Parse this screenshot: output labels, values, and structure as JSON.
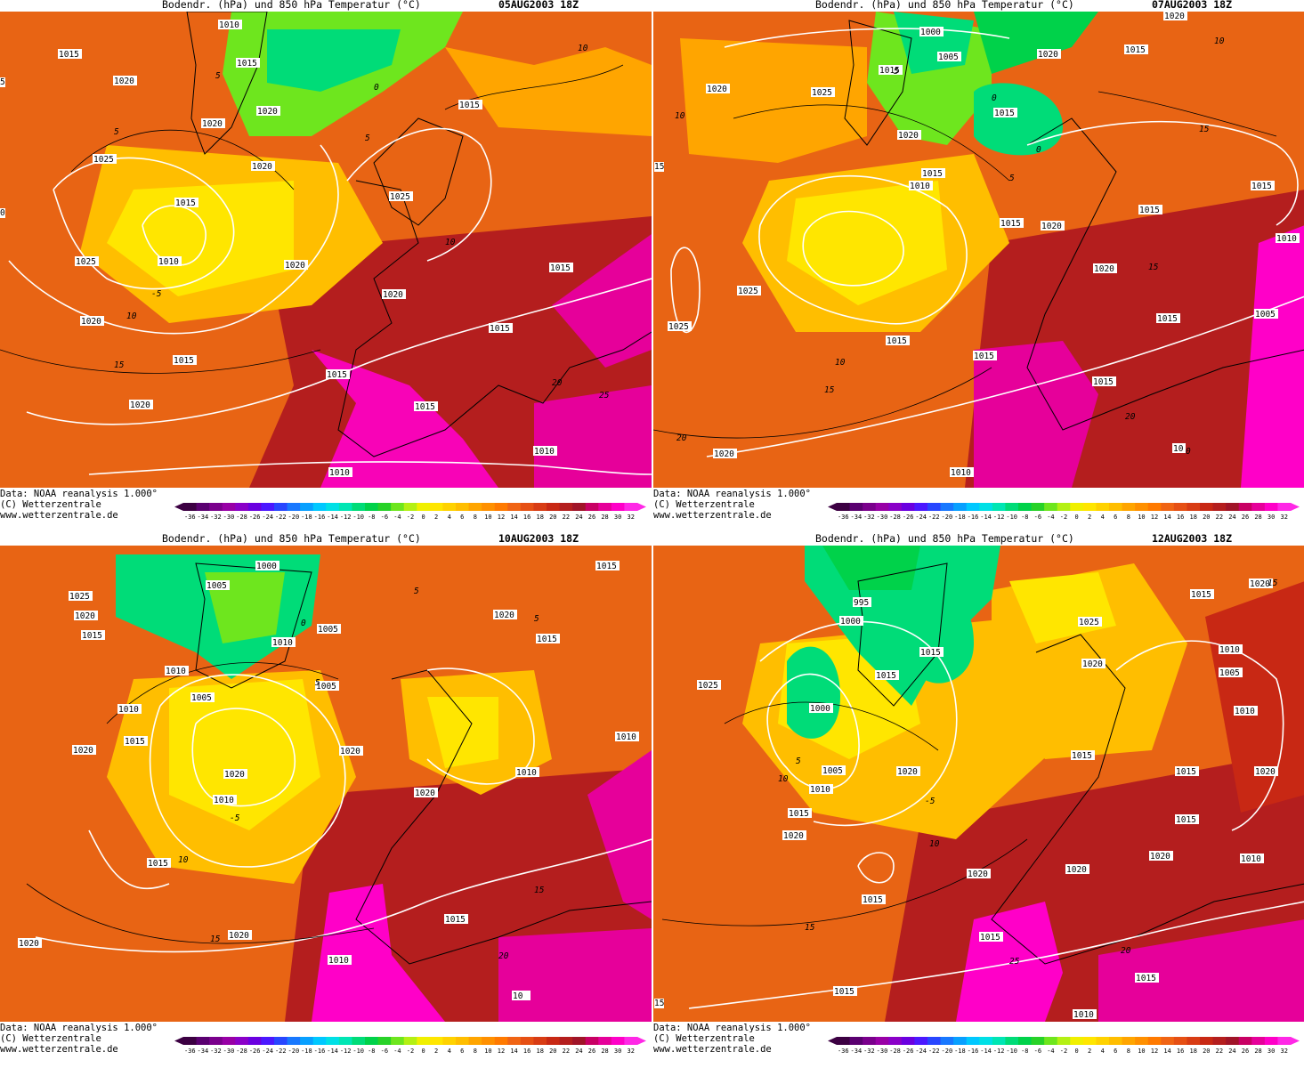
{
  "colors": {
    "bg": "#ffffff",
    "isobar": "#ffffff",
    "isotherm": "#000000",
    "land_outline": "#000000"
  },
  "scale": {
    "ticks": [
      "-36",
      "-34",
      "-32",
      "-30",
      "-28",
      "-26",
      "-24",
      "-22",
      "-20",
      "-18",
      "-16",
      "-14",
      "-12",
      "-10",
      "-8",
      "-6",
      "-4",
      "-2",
      "0",
      "2",
      "4",
      "6",
      "8",
      "10",
      "12",
      "14",
      "16",
      "18",
      "20",
      "22",
      "24",
      "26",
      "28",
      "30",
      "32"
    ],
    "colors": [
      "#3c0042",
      "#5a0070",
      "#7a008c",
      "#9800a6",
      "#8a00c8",
      "#6a00e0",
      "#4b18ff",
      "#2846ff",
      "#1878ff",
      "#08a0ff",
      "#00c8ff",
      "#00e0e6",
      "#00e6b4",
      "#00dc78",
      "#00d24a",
      "#28d228",
      "#6ee61e",
      "#b4f014",
      "#f0f000",
      "#ffe600",
      "#ffd200",
      "#ffbe00",
      "#ffa500",
      "#ff9000",
      "#ff7a00",
      "#f06414",
      "#e65014",
      "#d83c14",
      "#c82814",
      "#b41e1e",
      "#a01428",
      "#c80064",
      "#e6009a",
      "#ff00c8",
      "#ff28e6"
    ]
  },
  "panels": [
    {
      "title": "Bodendr. (hPa) und 850 hPa Temperatur (°C)",
      "date": "05AUG2003 18Z",
      "credit": [
        "Data: NOAA reanalysis 1.000°",
        "(C) Wetterzentrale",
        "www.wetterzentrale.de"
      ],
      "isobar_labels": [
        "1010",
        "1015",
        "1020",
        "1015",
        "1020",
        "1020",
        "1025",
        "1015",
        "1010",
        "1025",
        "1020",
        "1015",
        "1025",
        "1020",
        "1015",
        "1020",
        "1015",
        "1015",
        "1020",
        "1015",
        "1010",
        "1020",
        "1010",
        "1015"
      ],
      "isotherm_labels": [
        "5",
        "0",
        "5",
        "10",
        "-5",
        "5",
        "10",
        "15",
        "10",
        "25",
        "20"
      ],
      "left_edge_labels": [
        "5",
        "0"
      ]
    },
    {
      "title": "Bodendr. (hPa) und 850 hPa Temperatur (°C)",
      "date": "07AUG2003 18Z",
      "credit": [
        "Data: NOAA reanalysis 1.000°",
        "(C) Wetterzentrale",
        "www.wetterzentrale.de"
      ],
      "isobar_labels": [
        "1020",
        "1000",
        "1005",
        "1020",
        "1015",
        "1015",
        "1025",
        "1015",
        "1020",
        "1020",
        "1015",
        "1010",
        "1015",
        "1015",
        "1020",
        "1020",
        "1010",
        "1025",
        "1015",
        "1025",
        "1015",
        "1015",
        "1005",
        "1015",
        "1015",
        "1020",
        "1010",
        "10"
      ],
      "isotherm_labels": [
        "0",
        "10",
        "5",
        "15",
        "0",
        "10",
        "15",
        "5",
        "10",
        "15",
        "20",
        "20",
        "0"
      ],
      "left_edge_labels": [
        "15"
      ]
    },
    {
      "title": "Bodendr. (hPa) und 850 hPa Temperatur (°C)",
      "date": "10AUG2003 18Z",
      "credit": [
        "Data: NOAA reanalysis 1.000°",
        "(C) Wetterzentrale",
        "www.wetterzentrale.de"
      ],
      "isobar_labels": [
        "1000",
        "1015",
        "1025",
        "1020",
        "1005",
        "1015",
        "1020",
        "1010",
        "1005",
        "1010",
        "1015",
        "1010",
        "1005",
        "1020",
        "1010",
        "1020",
        "1010",
        "1015",
        "1005",
        "1010",
        "1020",
        "1015",
        "1015",
        "1020",
        "1010",
        "10"
      ],
      "isotherm_labels": [
        "5",
        "0",
        "5",
        "-5",
        "10",
        "15",
        "20",
        "15",
        "5"
      ],
      "left_edge_labels": []
    },
    {
      "title": "Bodendr. (hPa) und 850 hPa Temperatur (°C)",
      "date": "12AUG2003 18Z",
      "credit": [
        "Data: NOAA reanalysis 1.000°",
        "(C) Wetterzentrale",
        "www.wetterzentrale.de"
      ],
      "isobar_labels": [
        "1020",
        "1015",
        "995",
        "1000",
        "1025",
        "1025",
        "1015",
        "1020",
        "1010",
        "1005",
        "1010",
        "1015",
        "1000",
        "1015",
        "1015",
        "1005",
        "1010",
        "1015",
        "1020",
        "1020",
        "1015",
        "1020",
        "1015",
        "1020",
        "1020",
        "1015",
        "1015",
        "1010",
        "1015",
        "1010",
        "1020"
      ],
      "isotherm_labels": [
        "15",
        "5",
        "10",
        "-5",
        "10",
        "15",
        "20",
        "25"
      ],
      "left_edge_labels": [
        "15"
      ]
    }
  ]
}
